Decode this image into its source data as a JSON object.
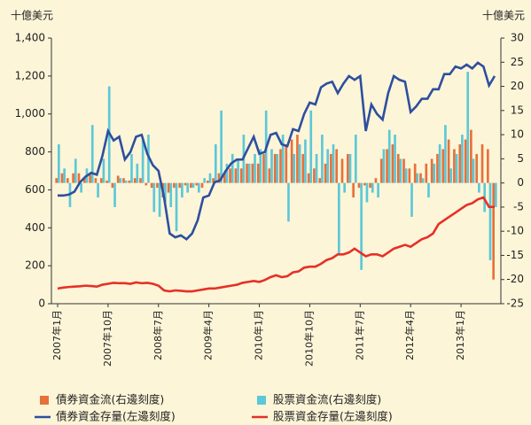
{
  "chart_data": {
    "type": "bar",
    "y_label": "十億美元",
    "y2_label": "十億美元",
    "categories": [
      "2007年1月",
      null,
      null,
      null,
      null,
      null,
      null,
      null,
      null,
      "2007年10月",
      null,
      null,
      null,
      null,
      null,
      null,
      null,
      null,
      "2008年7月",
      null,
      null,
      null,
      null,
      null,
      null,
      null,
      null,
      "2009年4月",
      null,
      null,
      null,
      null,
      null,
      null,
      null,
      null,
      "2010年1月",
      null,
      null,
      null,
      null,
      null,
      null,
      null,
      null,
      "2010年10月",
      null,
      null,
      null,
      null,
      null,
      null,
      null,
      null,
      "2011年7月",
      null,
      null,
      null,
      null,
      null,
      null,
      null,
      null,
      "2012年4月",
      null,
      null,
      null,
      null,
      null,
      null,
      null,
      null,
      "2013年1月",
      null,
      null,
      null,
      null,
      null,
      null
    ],
    "ylim": [
      0,
      1400
    ],
    "yticks": [
      0,
      200,
      400,
      600,
      800,
      {
        "value": 1000,
        "label": "1,000"
      },
      {
        "value": 1200,
        "label": "1,200"
      },
      {
        "value": 1400,
        "label": "1,400"
      }
    ],
    "y2lim": [
      -25,
      30
    ],
    "y2ticks": [
      -25,
      -20,
      -15,
      -10,
      -5,
      0,
      5,
      10,
      15,
      20,
      25,
      30
    ],
    "series": [
      {
        "name": "債券資金流(右邊刻度)",
        "type": "bar",
        "axis": "y2",
        "color": "#e8703a",
        "values": [
          1,
          2,
          1,
          2,
          2,
          1,
          2,
          1,
          1,
          0.5,
          -1,
          1.5,
          1,
          0.5,
          1,
          1,
          -0.5,
          -1,
          -1,
          -3,
          -2,
          -1,
          -1,
          -0.5,
          -1,
          -0.5,
          -1,
          0.5,
          1,
          2,
          2,
          3,
          3,
          3,
          4,
          4,
          4,
          6,
          3,
          6,
          7,
          8,
          9,
          10,
          6,
          2,
          3,
          1,
          4,
          6,
          7,
          5,
          6,
          -3,
          -1,
          -0.5,
          -1,
          1,
          5,
          7,
          8,
          6,
          5,
          3,
          4,
          2,
          4,
          5,
          6,
          7,
          9,
          7,
          8,
          9,
          11,
          6,
          8,
          7,
          -20
        ]
      },
      {
        "name": "股票資金流(右邊刻度)",
        "type": "bar",
        "axis": "y2",
        "color": "#5bc8d8",
        "values": [
          8,
          3,
          -5,
          5,
          -2,
          3,
          12,
          -3,
          5,
          20,
          -5,
          1,
          0.5,
          6,
          4,
          9,
          10,
          -6,
          -7,
          -4,
          -5,
          -10,
          -3,
          -2,
          -1,
          -2,
          1,
          2,
          8,
          15,
          4,
          6,
          5,
          10,
          4,
          6,
          7,
          15,
          7,
          6,
          10,
          -8,
          6,
          8,
          9,
          15,
          6,
          10,
          7,
          8,
          -15,
          -2,
          6,
          10,
          -18,
          -4,
          -2,
          -3,
          7,
          11,
          10,
          5,
          3,
          -7,
          2,
          1,
          -3,
          4,
          8,
          12,
          3,
          6,
          10,
          23,
          5,
          -2,
          -6,
          -16,
          -5
        ]
      },
      {
        "name": "債券資金存量(左邊刻度)",
        "type": "line",
        "color": "#2e4f9e",
        "values": [
          570,
          570,
          575,
          590,
          640,
          670,
          690,
          680,
          780,
          910,
          860,
          880,
          760,
          800,
          880,
          890,
          790,
          730,
          700,
          560,
          370,
          350,
          360,
          340,
          370,
          440,
          560,
          570,
          640,
          650,
          700,
          740,
          760,
          760,
          820,
          880,
          790,
          800,
          890,
          900,
          840,
          830,
          920,
          910,
          1000,
          1060,
          1050,
          1140,
          1160,
          1170,
          1110,
          1160,
          1200,
          1180,
          1200,
          910,
          1050,
          1000,
          970,
          1110,
          1200,
          1180,
          1170,
          1010,
          1040,
          1080,
          1080,
          1130,
          1130,
          1210,
          1210,
          1250,
          1240,
          1260,
          1240,
          1270,
          1250,
          1150,
          1200
        ]
      },
      {
        "name": "股票資金存量(左邊刻度)",
        "type": "line",
        "color": "#e63027",
        "values": [
          80,
          85,
          88,
          90,
          92,
          95,
          93,
          90,
          100,
          105,
          110,
          108,
          108,
          105,
          112,
          108,
          110,
          105,
          95,
          70,
          65,
          70,
          68,
          65,
          65,
          70,
          75,
          80,
          80,
          85,
          90,
          95,
          100,
          110,
          115,
          120,
          115,
          125,
          140,
          150,
          140,
          145,
          165,
          170,
          190,
          195,
          195,
          210,
          230,
          240,
          260,
          260,
          270,
          290,
          270,
          250,
          260,
          260,
          250,
          270,
          290,
          300,
          310,
          300,
          320,
          340,
          350,
          370,
          420,
          440,
          460,
          480,
          500,
          520,
          530,
          550,
          560,
          510,
          510
        ]
      }
    ]
  }
}
